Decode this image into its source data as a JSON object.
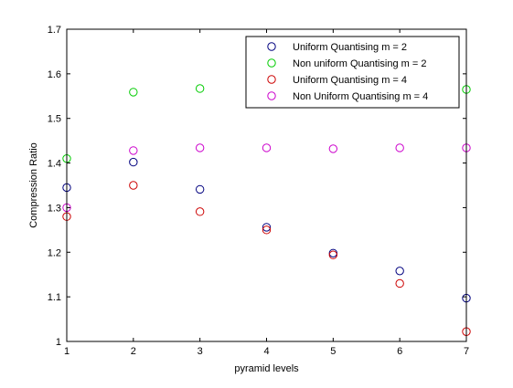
{
  "chart_data": {
    "type": "scatter",
    "title": "",
    "xlabel": "pyramid levels",
    "ylabel": "Compression Ratio",
    "xlim": [
      1,
      7
    ],
    "ylim": [
      1,
      1.7
    ],
    "xticks": [
      1,
      2,
      3,
      4,
      5,
      6,
      7
    ],
    "yticks": [
      1,
      1.1,
      1.2,
      1.3,
      1.4,
      1.5,
      1.6,
      1.7
    ],
    "xtick_labels": [
      "1",
      "2",
      "3",
      "4",
      "5",
      "6",
      "7"
    ],
    "ytick_labels": [
      "1",
      "1.1",
      "1.2",
      "1.3",
      "1.4",
      "1.5",
      "1.6",
      "1.7"
    ],
    "grid": false,
    "legend_position": "top-right",
    "marker": "circle-open",
    "series": [
      {
        "name": "Uniform Quantising m = 2",
        "color": "#00007f",
        "x": [
          1,
          2,
          3,
          4,
          5,
          6,
          7
        ],
        "y": [
          1.345,
          1.402,
          1.341,
          1.256,
          1.198,
          1.158,
          1.097
        ]
      },
      {
        "name": "Non uniform Quantising m = 2",
        "color": "#00cc00",
        "x": [
          1,
          2,
          3,
          4,
          5,
          6,
          7
        ],
        "y": [
          1.41,
          1.559,
          1.567,
          null,
          null,
          null,
          1.565
        ]
      },
      {
        "name": "Uniform Quantising m = 4",
        "color": "#cc0000",
        "x": [
          1,
          2,
          3,
          4,
          5,
          6,
          7
        ],
        "y": [
          1.28,
          1.35,
          1.291,
          1.25,
          1.194,
          1.13,
          1.022
        ]
      },
      {
        "name": "Non Uniform Quantising m = 4",
        "color": "#cc00cc",
        "x": [
          1,
          2,
          3,
          4,
          5,
          6,
          7
        ],
        "y": [
          1.3,
          1.428,
          1.434,
          1.434,
          1.432,
          1.434,
          1.434
        ]
      }
    ]
  }
}
